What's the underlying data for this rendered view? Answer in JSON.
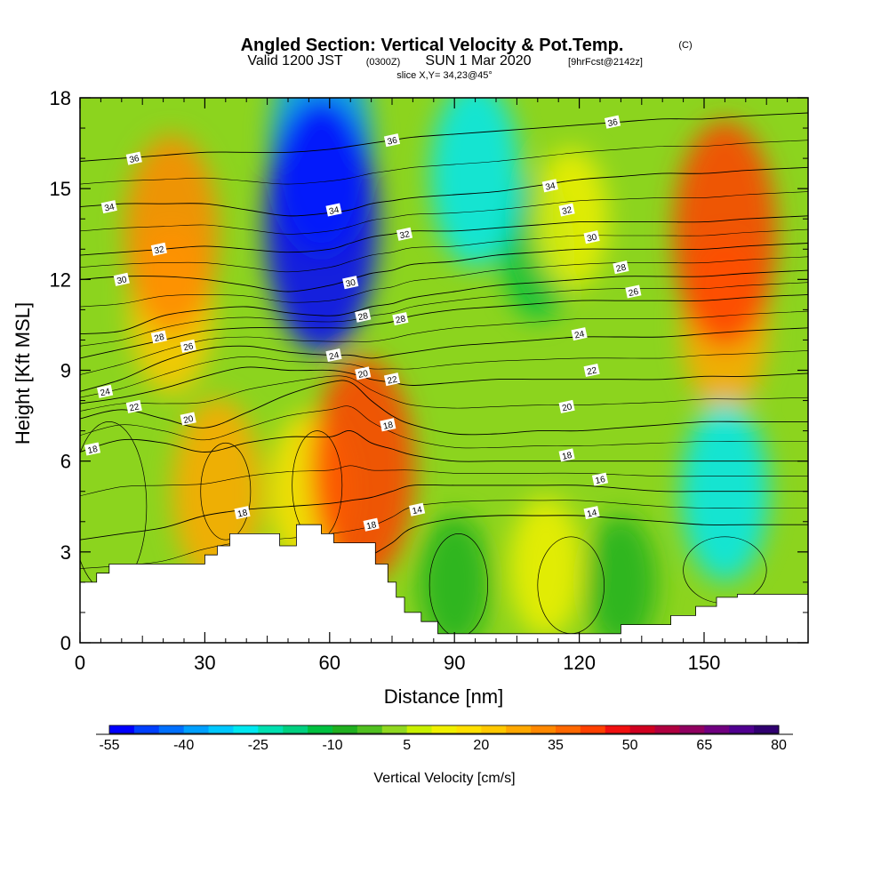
{
  "header": {
    "title": "Angled Section: Vertical Velocity & Pot.Temp.",
    "title_mark": "(C)",
    "valid_prefix": "Valid 1200 JST",
    "valid_utc": "(0300Z)",
    "valid_date": "SUN 1 Mar 2020",
    "forecast": "[9hrFcst@2142z]",
    "slice": "slice X,Y= 34,23@45°"
  },
  "chart_data": {
    "type": "heatmap",
    "xlabel": "Distance [nm]",
    "ylabel": "Height [Kft MSL]",
    "xlim": [
      0,
      175
    ],
    "ylim": [
      0,
      18
    ],
    "xticks": [
      0,
      30,
      60,
      90,
      120,
      150
    ],
    "yticks": [
      0,
      3,
      6,
      9,
      12,
      15,
      18
    ],
    "colorbar": {
      "title": "Vertical Velocity [cm/s]",
      "levels": [
        -55,
        -50,
        -45,
        -40,
        -35,
        -30,
        -25,
        -20,
        -15,
        -10,
        -5,
        0,
        5,
        10,
        15,
        20,
        25,
        30,
        35,
        40,
        45,
        50,
        55,
        60,
        65,
        70,
        75,
        80
      ],
      "tick_labels": [
        "-55",
        "-40",
        "-25",
        "-10",
        "5",
        "20",
        "35",
        "50",
        "65",
        "80"
      ],
      "tick_values": [
        -55,
        -40,
        -25,
        -10,
        5,
        20,
        35,
        50,
        65,
        80
      ],
      "colors": [
        "#0000ff",
        "#0040ff",
        "#0070ff",
        "#00a0ff",
        "#00c8ff",
        "#00e8f0",
        "#00e0b0",
        "#00d080",
        "#00c040",
        "#20b020",
        "#50c020",
        "#90d820",
        "#c8f000",
        "#f0f000",
        "#ffe000",
        "#ffc800",
        "#ffa800",
        "#ff8800",
        "#ff6800",
        "#ff4000",
        "#f01010",
        "#d00020",
        "#b00040",
        "#900060",
        "#700080",
        "#500090",
        "#300070"
      ]
    },
    "velocity_field": {
      "units": "cm/s",
      "features": [
        {
          "x": 58,
          "z": 13.8,
          "value": -52
        },
        {
          "x": 58,
          "z": 16.5,
          "value": -40
        },
        {
          "x": 95,
          "z": 15.5,
          "value": -28
        },
        {
          "x": 22,
          "z": 13.5,
          "value": 32
        },
        {
          "x": 22,
          "z": 11.0,
          "value": 22
        },
        {
          "x": 155,
          "z": 13.5,
          "value": 42
        },
        {
          "x": 155,
          "z": 10.5,
          "value": 25
        },
        {
          "x": 68,
          "z": 5.7,
          "value": 42
        },
        {
          "x": 33,
          "z": 5.0,
          "value": 28
        },
        {
          "x": 55,
          "z": 5.0,
          "value": 18
        },
        {
          "x": 155,
          "z": 5.0,
          "value": -26
        },
        {
          "x": 110,
          "z": 13.0,
          "value": -12
        },
        {
          "x": 118,
          "z": 14.0,
          "value": 12
        },
        {
          "x": 90,
          "z": 2.0,
          "value": -10
        },
        {
          "x": 112,
          "z": 2.5,
          "value": 12
        },
        {
          "x": 130,
          "z": 2.0,
          "value": -10
        }
      ]
    },
    "terrain_profile": {
      "x": [
        0,
        4,
        4,
        7,
        7,
        10,
        10,
        30,
        30,
        33,
        33,
        36,
        36,
        48,
        48,
        52,
        52,
        58,
        58,
        61,
        61,
        71,
        71,
        74,
        74,
        76,
        76,
        78,
        78,
        82,
        82,
        86,
        86,
        100,
        100,
        130,
        130,
        142,
        142,
        148,
        148,
        153,
        153,
        158,
        158,
        175
      ],
      "height": [
        2.0,
        2.0,
        2.3,
        2.3,
        2.6,
        2.6,
        2.6,
        2.6,
        2.9,
        2.9,
        3.2,
        3.2,
        3.6,
        3.6,
        3.2,
        3.2,
        3.9,
        3.9,
        3.6,
        3.6,
        3.3,
        3.3,
        2.6,
        2.6,
        2.0,
        2.0,
        1.5,
        1.5,
        1.0,
        1.0,
        0.7,
        0.7,
        0.3,
        0.3,
        0.3,
        0.3,
        0.6,
        0.6,
        0.9,
        0.9,
        1.2,
        1.2,
        1.5,
        1.5,
        1.6,
        1.6
      ]
    },
    "isentropes": {
      "units": "C",
      "x": [
        0,
        10,
        20,
        30,
        40,
        50,
        60,
        65,
        70,
        75,
        80,
        90,
        100,
        110,
        120,
        130,
        140,
        150,
        160,
        175
      ],
      "lines": [
        {
          "value": 14,
          "heights": [
            1.5,
            1.5,
            1.6,
            2.0,
            2.3,
            2.4,
            2.6,
            2.7,
            2.9,
            3.3,
            3.8,
            4.1,
            4.2,
            4.2,
            4.2,
            4.1,
            4.0,
            3.9,
            3.9,
            3.9
          ]
        },
        {
          "value": 16,
          "heights": [
            3.4,
            3.6,
            3.8,
            4.2,
            4.4,
            4.5,
            4.6,
            4.7,
            4.8,
            5.0,
            5.2,
            5.2,
            5.2,
            5.2,
            5.2,
            5.1,
            5.0,
            5.0,
            5.0,
            5.0
          ]
        },
        {
          "value": 18,
          "heights": [
            6.3,
            6.7,
            6.6,
            6.3,
            6.6,
            6.8,
            6.8,
            7.0,
            6.6,
            6.4,
            6.2,
            6.0,
            6.0,
            6.0,
            6.0,
            6.0,
            6.0,
            6.0,
            6.0,
            6.0
          ]
        },
        {
          "value": 20,
          "heights": [
            7.4,
            7.7,
            7.4,
            7.1,
            7.6,
            8.2,
            8.6,
            8.6,
            8.0,
            7.5,
            7.2,
            6.9,
            6.9,
            7.0,
            7.0,
            7.1,
            7.2,
            7.3,
            7.3,
            7.3
          ]
        },
        {
          "value": 22,
          "heights": [
            7.9,
            8.1,
            8.4,
            8.8,
            9.1,
            9.0,
            9.0,
            8.9,
            8.7,
            8.6,
            8.5,
            8.6,
            8.7,
            8.7,
            8.7,
            8.7,
            8.7,
            8.8,
            8.8,
            8.9
          ]
        },
        {
          "value": 24,
          "heights": [
            8.3,
            8.7,
            9.3,
            9.7,
            9.8,
            9.6,
            9.5,
            9.5,
            9.4,
            9.5,
            9.6,
            9.8,
            9.9,
            10.0,
            10.1,
            10.1,
            10.1,
            10.2,
            10.3,
            10.4
          ]
        },
        {
          "value": 26,
          "heights": [
            9.4,
            9.7,
            10.0,
            10.3,
            10.4,
            10.4,
            10.4,
            10.4,
            10.5,
            10.6,
            10.8,
            11.0,
            11.1,
            11.2,
            11.3,
            11.3,
            11.3,
            11.3,
            11.4,
            11.5
          ]
        },
        {
          "value": 28,
          "heights": [
            10.2,
            10.3,
            10.8,
            11.0,
            11.1,
            10.9,
            10.8,
            10.9,
            11.1,
            11.2,
            11.4,
            11.6,
            11.8,
            11.9,
            12.0,
            12.1,
            12.1,
            12.1,
            12.2,
            12.3
          ]
        },
        {
          "value": 30,
          "heights": [
            12.0,
            12.1,
            12.1,
            12.0,
            11.8,
            11.6,
            11.8,
            12.0,
            12.2,
            12.3,
            12.5,
            12.6,
            12.8,
            12.9,
            13.0,
            13.0,
            13.0,
            13.0,
            13.1,
            13.2
          ]
        },
        {
          "value": 32,
          "heights": [
            12.8,
            12.9,
            13.0,
            13.1,
            13.0,
            12.9,
            13.0,
            13.2,
            13.4,
            13.5,
            13.6,
            13.6,
            13.7,
            13.8,
            13.9,
            13.9,
            13.9,
            13.9,
            14.0,
            14.1
          ]
        },
        {
          "value": 34,
          "heights": [
            14.4,
            14.5,
            14.5,
            14.5,
            14.3,
            14.1,
            14.2,
            14.3,
            14.5,
            14.6,
            14.7,
            14.8,
            14.9,
            15.1,
            15.3,
            15.4,
            15.5,
            15.5,
            15.6,
            15.7
          ]
        },
        {
          "value": 36,
          "heights": [
            15.9,
            16.0,
            16.1,
            16.2,
            16.2,
            16.2,
            16.3,
            16.4,
            16.5,
            16.6,
            16.7,
            16.8,
            16.9,
            17.0,
            17.1,
            17.2,
            17.3,
            17.3,
            17.4,
            17.5
          ]
        }
      ],
      "labels": [
        {
          "text": "36",
          "x": 13,
          "z": 16.0
        },
        {
          "text": "36",
          "x": 75,
          "z": 16.6
        },
        {
          "text": "36",
          "x": 128,
          "z": 17.2
        },
        {
          "text": "34",
          "x": 7,
          "z": 14.4
        },
        {
          "text": "34",
          "x": 61,
          "z": 14.3
        },
        {
          "text": "34",
          "x": 113,
          "z": 15.1
        },
        {
          "text": "32",
          "x": 19,
          "z": 13.0
        },
        {
          "text": "32",
          "x": 78,
          "z": 13.5
        },
        {
          "text": "32",
          "x": 117,
          "z": 14.3
        },
        {
          "text": "30",
          "x": 10,
          "z": 12.0
        },
        {
          "text": "30",
          "x": 65,
          "z": 11.9
        },
        {
          "text": "30",
          "x": 123,
          "z": 13.4
        },
        {
          "text": "28",
          "x": 19,
          "z": 10.1
        },
        {
          "text": "28",
          "x": 68,
          "z": 10.8
        },
        {
          "text": "28",
          "x": 77,
          "z": 10.7
        },
        {
          "text": "28",
          "x": 130,
          "z": 12.4
        },
        {
          "text": "26",
          "x": 26,
          "z": 9.8
        },
        {
          "text": "26",
          "x": 133,
          "z": 11.6
        },
        {
          "text": "24",
          "x": 6,
          "z": 8.3
        },
        {
          "text": "24",
          "x": 61,
          "z": 9.5
        },
        {
          "text": "24",
          "x": 120,
          "z": 10.2
        },
        {
          "text": "22",
          "x": 13,
          "z": 7.8
        },
        {
          "text": "22",
          "x": 75,
          "z": 8.7
        },
        {
          "text": "22",
          "x": 123,
          "z": 9.0
        },
        {
          "text": "20",
          "x": 26,
          "z": 7.4
        },
        {
          "text": "20",
          "x": 68,
          "z": 8.9
        },
        {
          "text": "20",
          "x": 117,
          "z": 7.8
        },
        {
          "text": "18",
          "x": 3,
          "z": 6.4
        },
        {
          "text": "18",
          "x": 74,
          "z": 7.2
        },
        {
          "text": "18",
          "x": 117,
          "z": 6.2
        },
        {
          "text": "18",
          "x": 39,
          "z": 4.3
        },
        {
          "text": "18",
          "x": 70,
          "z": 3.9
        },
        {
          "text": "16",
          "x": 125,
          "z": 5.4
        },
        {
          "text": "14",
          "x": 81,
          "z": 4.4
        },
        {
          "text": "14",
          "x": 123,
          "z": 4.3
        }
      ]
    },
    "lower_closed_contours": [
      {
        "cx": 7,
        "cz": 4.5,
        "rx": 9,
        "rz": 2.8
      },
      {
        "cx": 35,
        "cz": 5.0,
        "rx": 6,
        "rz": 1.6
      },
      {
        "cx": 57,
        "cz": 5.2,
        "rx": 6,
        "rz": 1.8
      },
      {
        "cx": 91,
        "cz": 1.9,
        "rx": 7,
        "rz": 1.7
      },
      {
        "cx": 118,
        "cz": 1.9,
        "rx": 8,
        "rz": 1.6
      },
      {
        "cx": 155,
        "cz": 2.4,
        "rx": 10,
        "rz": 1.1
      }
    ]
  }
}
